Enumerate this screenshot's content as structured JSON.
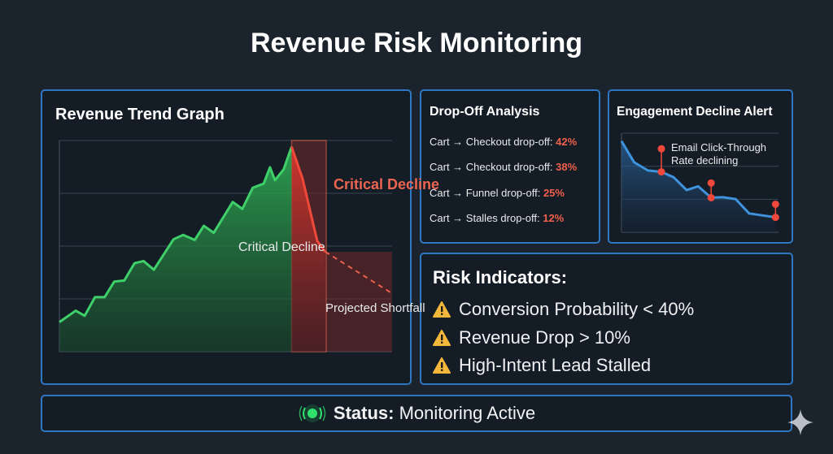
{
  "title": "Revenue Risk Monitoring",
  "colors": {
    "accent_border": "#2f77c2",
    "growth": "#3fd06a",
    "decline": "#f0483a",
    "alert": "#f0604a",
    "warning": "#f5b73b",
    "status": "#2fe06a",
    "engagement_line": "#3f93dd"
  },
  "revenue_panel": {
    "title": "Revenue Trend Graph",
    "label_critical_red": "Critical Decline",
    "label_critical_white": "Critical Decline",
    "label_projected": "Projected Shortfall"
  },
  "dropoff_panel": {
    "title": "Drop-Off Analysis",
    "items": [
      {
        "label": "Cart → Checkout drop-off:",
        "value": "42%"
      },
      {
        "label": "Cart → Checkout drop-off:",
        "value": "38%"
      },
      {
        "label": "Cart → Funnel drop-off:",
        "value": "25%"
      },
      {
        "label": "Cart → Stalles drop-off:",
        "value": "12%"
      }
    ]
  },
  "engagement_panel": {
    "title": "Engagement Decline Alert",
    "annotation_line1": "Email Click-Through",
    "annotation_line2": "Rate declining"
  },
  "risk_panel": {
    "title": "Risk Indicators:",
    "items": [
      "Conversion Probability < 40%",
      "Revenue Drop > 10%",
      "High-Intent Lead Stalled"
    ],
    "icon": "warning-triangle-icon"
  },
  "status": {
    "label": "Status:",
    "value": "Monitoring Active",
    "icon": "signal-broadcast-icon"
  },
  "chart_data": [
    {
      "type": "area",
      "title": "Revenue Trend Graph",
      "xlabel": "",
      "ylabel": "",
      "xlim": [
        0,
        100
      ],
      "ylim": [
        0,
        100
      ],
      "grid": true,
      "series": [
        {
          "x": [
            0,
            4.9,
            7.6,
            10.7,
            13.6,
            16.5,
            19.5,
            22.6,
            25.3,
            28.4,
            34.3,
            37.2,
            40.7,
            43.4,
            46.4,
            52.1,
            55,
            58.1,
            61.4,
            63.3,
            64.8,
            67.4,
            69.8
          ],
          "y": [
            14,
            19.4,
            17,
            25.8,
            25.8,
            33.2,
            33.7,
            41.9,
            42.9,
            38.8,
            53.2,
            55.3,
            52.9,
            59.6,
            56.3,
            70.9,
            67.6,
            77.6,
            79.6,
            87.3,
            81.2,
            86.3,
            97
          ]
        },
        {
          "x": [
            69.8,
            73.1,
            77.5,
            79.9
          ],
          "y": [
            97,
            81.9,
            52.4,
            47.3
          ]
        },
        {
          "x": [
            79.9,
            100
          ],
          "y": [
            47.3,
            27.6
          ],
          "style": "dashed"
        }
      ],
      "regions": [
        {
          "label": "Critical Decline",
          "x": [
            69.8,
            80.2
          ],
          "y": [
            0,
            100
          ]
        },
        {
          "label": "Projected Shortfall",
          "x": [
            80.2,
            100
          ],
          "y": [
            0,
            47.3
          ]
        }
      ]
    },
    {
      "type": "area",
      "title": "Engagement Decline Alert",
      "xlabel": "",
      "ylabel": "",
      "xlim": [
        0,
        100
      ],
      "ylim": [
        0,
        100
      ],
      "grid": true,
      "x": [
        0,
        8.1,
        16.8,
        25.4,
        33.2,
        41.5,
        48.8,
        57.1,
        64.4,
        72.7,
        81.3,
        98.1
      ],
      "y": [
        92,
        70.6,
        62.4,
        61,
        55.5,
        42.6,
        46.4,
        34.9,
        35.4,
        33.5,
        19,
        15.1
      ],
      "alerts": [
        {
          "x": 25.4,
          "from": 61,
          "to": 84.3
        },
        {
          "x": 57.1,
          "from": 34.9,
          "to": 49.7
        },
        {
          "x": 98.1,
          "from": 15.1,
          "to": 28.3
        }
      ]
    }
  ]
}
